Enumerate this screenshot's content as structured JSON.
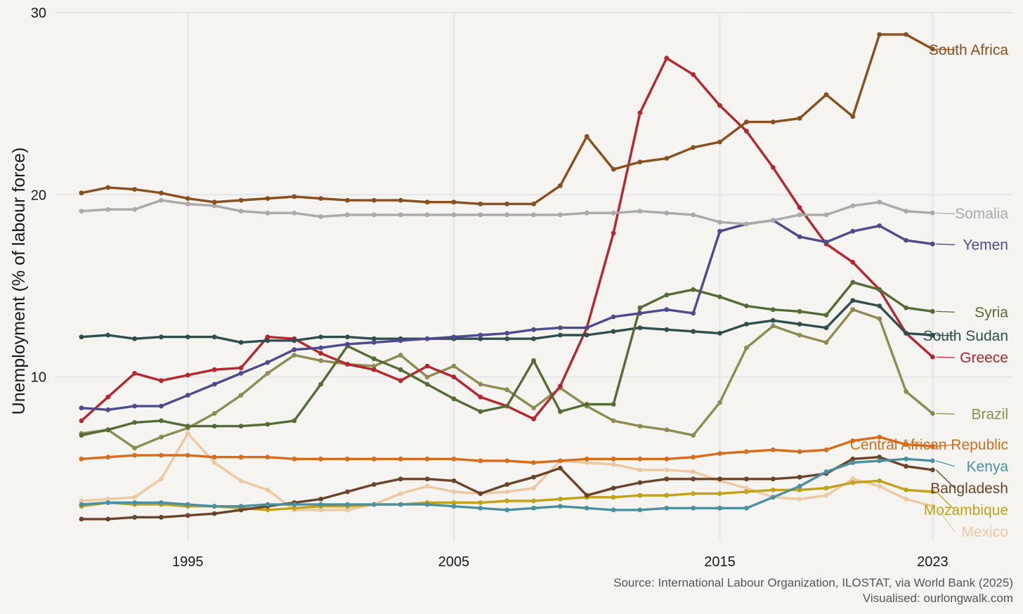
{
  "chart_data": {
    "type": "line",
    "ylabel": "Unemployment (% of labour force)",
    "xlim": [
      1990,
      2026
    ],
    "ylim": [
      1,
      30
    ],
    "x_ticks": [
      1995,
      2005,
      2015,
      2023
    ],
    "y_ticks": [
      10,
      20,
      30
    ],
    "grid": true,
    "x": [
      1991,
      1992,
      1993,
      1994,
      1995,
      1996,
      1997,
      1998,
      1999,
      2000,
      2001,
      2002,
      2003,
      2004,
      2005,
      2006,
      2007,
      2008,
      2009,
      2010,
      2011,
      2012,
      2013,
      2014,
      2015,
      2016,
      2017,
      2018,
      2019,
      2020,
      2021,
      2022,
      2023
    ],
    "series": [
      {
        "name": "South Africa",
        "color": "#8b4f1f",
        "values": [
          20.1,
          20.4,
          20.3,
          20.1,
          19.8,
          19.6,
          19.7,
          19.8,
          19.9,
          19.8,
          19.7,
          19.7,
          19.7,
          19.6,
          19.6,
          19.5,
          19.5,
          19.5,
          20.5,
          23.2,
          21.4,
          21.8,
          22.0,
          22.6,
          22.9,
          24.0,
          24.0,
          24.2,
          25.5,
          24.3,
          28.8,
          28.8,
          28.0
        ]
      },
      {
        "name": "Somalia",
        "color": "#aaaaaa",
        "values": [
          19.1,
          19.2,
          19.2,
          19.7,
          19.5,
          19.4,
          19.1,
          19.0,
          19.0,
          18.8,
          18.9,
          18.9,
          18.9,
          18.9,
          18.9,
          18.9,
          18.9,
          18.9,
          18.9,
          19.0,
          19.0,
          19.1,
          19.0,
          18.9,
          18.5,
          18.4,
          18.6,
          18.9,
          18.9,
          19.4,
          19.6,
          19.1,
          19.0
        ]
      },
      {
        "name": "Yemen",
        "color": "#4f4a8f",
        "values": [
          8.3,
          8.2,
          8.4,
          8.4,
          9.0,
          9.6,
          10.2,
          10.8,
          11.5,
          11.6,
          11.8,
          11.9,
          12.0,
          12.1,
          12.2,
          12.3,
          12.4,
          12.6,
          12.7,
          12.7,
          13.3,
          13.5,
          13.7,
          13.5,
          18.0,
          18.4,
          18.6,
          17.7,
          17.4,
          18.0,
          18.3,
          17.5,
          17.3
        ]
      },
      {
        "name": "Syria",
        "color": "#566b35",
        "values": [
          6.8,
          7.1,
          7.5,
          7.6,
          7.3,
          7.3,
          7.3,
          7.4,
          7.6,
          9.6,
          11.7,
          11.0,
          10.4,
          9.6,
          8.8,
          8.1,
          8.4,
          10.9,
          8.1,
          8.5,
          8.5,
          13.8,
          14.5,
          14.8,
          14.4,
          13.9,
          13.7,
          13.6,
          13.4,
          15.2,
          14.8,
          13.8,
          13.6
        ]
      },
      {
        "name": "South Sudan",
        "color": "#2f4f4f",
        "values": [
          12.2,
          12.3,
          12.1,
          12.2,
          12.2,
          12.2,
          11.9,
          12.0,
          12.0,
          12.2,
          12.2,
          12.1,
          12.1,
          12.1,
          12.1,
          12.1,
          12.1,
          12.1,
          12.3,
          12.3,
          12.5,
          12.7,
          12.6,
          12.5,
          12.4,
          12.9,
          13.1,
          12.9,
          12.7,
          14.2,
          13.9,
          12.4,
          12.3
        ]
      },
      {
        "name": "Greece",
        "color": "#b5262f",
        "values": [
          7.6,
          8.9,
          10.2,
          9.8,
          10.1,
          10.4,
          10.5,
          12.2,
          12.1,
          11.3,
          10.7,
          10.4,
          9.8,
          10.6,
          10.0,
          8.9,
          8.4,
          7.7,
          9.5,
          12.7,
          17.9,
          24.5,
          27.5,
          26.6,
          24.9,
          23.5,
          21.5,
          19.3,
          17.3,
          16.3,
          14.8,
          12.4,
          11.1
        ]
      },
      {
        "name": "Brazil",
        "color": "#8f8b52",
        "values": [
          6.9,
          7.1,
          6.1,
          6.7,
          7.2,
          8.0,
          9.0,
          10.2,
          11.2,
          10.9,
          10.7,
          10.6,
          11.2,
          10.0,
          10.6,
          9.6,
          9.3,
          8.3,
          9.4,
          8.4,
          7.6,
          7.3,
          7.1,
          6.8,
          8.6,
          11.6,
          12.8,
          12.3,
          11.9,
          13.7,
          13.2,
          9.2,
          8.0
        ]
      },
      {
        "name": "Central African Republic",
        "color": "#d96c1b",
        "values": [
          5.5,
          5.6,
          5.7,
          5.7,
          5.7,
          5.6,
          5.6,
          5.6,
          5.5,
          5.5,
          5.5,
          5.5,
          5.5,
          5.5,
          5.5,
          5.4,
          5.4,
          5.3,
          5.4,
          5.5,
          5.5,
          5.5,
          5.5,
          5.6,
          5.8,
          5.9,
          6.0,
          5.9,
          6.0,
          6.5,
          6.7,
          6.3,
          6.2
        ]
      },
      {
        "name": "Kenya",
        "color": "#4a90a0",
        "values": [
          3.0,
          3.1,
          3.1,
          3.1,
          3.0,
          2.9,
          2.9,
          3.0,
          3.0,
          3.0,
          3.0,
          3.0,
          3.0,
          3.0,
          2.9,
          2.8,
          2.7,
          2.8,
          2.9,
          2.8,
          2.7,
          2.7,
          2.8,
          2.8,
          2.8,
          2.8,
          3.4,
          4.0,
          4.8,
          5.3,
          5.4,
          5.5,
          5.4
        ]
      },
      {
        "name": "Bangladesh",
        "color": "#6b432a",
        "values": [
          2.2,
          2.2,
          2.3,
          2.3,
          2.4,
          2.5,
          2.7,
          2.9,
          3.1,
          3.3,
          3.7,
          4.1,
          4.4,
          4.4,
          4.3,
          3.6,
          4.1,
          4.5,
          5.0,
          3.5,
          3.9,
          4.2,
          4.4,
          4.4,
          4.4,
          4.4,
          4.4,
          4.5,
          4.7,
          5.5,
          5.6,
          5.1,
          4.9
        ]
      },
      {
        "name": "Mozambique",
        "color": "#c2a21a",
        "values": [
          2.9,
          3.1,
          3.0,
          3.0,
          2.9,
          2.9,
          2.8,
          2.7,
          2.8,
          2.9,
          2.9,
          3.0,
          3.0,
          3.1,
          3.1,
          3.1,
          3.2,
          3.2,
          3.3,
          3.4,
          3.4,
          3.5,
          3.5,
          3.6,
          3.6,
          3.7,
          3.8,
          3.8,
          3.9,
          4.2,
          4.3,
          3.8,
          3.7
        ]
      },
      {
        "name": "Mexico",
        "color": "#ecc9a2",
        "values": [
          3.2,
          3.3,
          3.4,
          4.4,
          6.9,
          5.3,
          4.3,
          3.8,
          2.7,
          2.7,
          2.7,
          3.0,
          3.6,
          4.0,
          3.7,
          3.6,
          3.7,
          3.9,
          5.4,
          5.3,
          5.2,
          4.9,
          4.9,
          4.8,
          4.3,
          3.9,
          3.4,
          3.3,
          3.5,
          4.4,
          4.0,
          3.3,
          2.9
        ]
      }
    ],
    "source": "Source: International Labour Organization, ILOSTAT, via World Bank (2025)",
    "credit": "Visualised: ourlongwalk.com"
  }
}
